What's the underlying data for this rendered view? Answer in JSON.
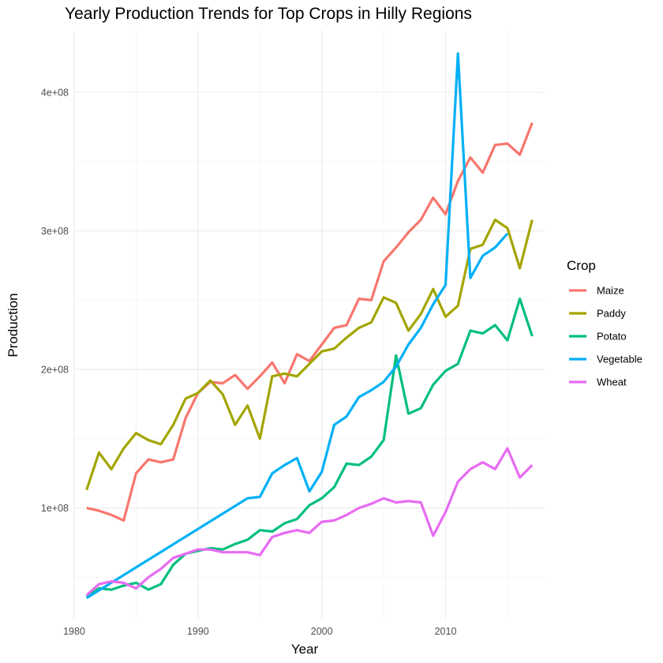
{
  "chart_data": {
    "type": "line",
    "title": "Yearly Production Trends for Top Crops in Hilly Regions",
    "xlabel": "Year",
    "ylabel": "Production",
    "xlim": [
      1980,
      2018
    ],
    "ylim": [
      20000000,
      445000000
    ],
    "x_ticks": [
      1980,
      1990,
      2000,
      2010
    ],
    "x_tick_labels": [
      "1980",
      "1990",
      "2000",
      "2010"
    ],
    "y_ticks": [
      100000000,
      200000000,
      300000000,
      400000000
    ],
    "y_tick_labels": [
      "1e+08",
      "2e+08",
      "3e+08",
      "4e+08"
    ],
    "grid": true,
    "legend": {
      "title": "Crop",
      "position": "right"
    },
    "series": [
      {
        "name": "Maize",
        "color": "#F8766D",
        "x": [
          1981,
          1982,
          1983,
          1984,
          1985,
          1986,
          1987,
          1988,
          1989,
          1990,
          1991,
          1992,
          1993,
          1994,
          1995,
          1996,
          1997,
          1998,
          1999,
          2000,
          2001,
          2002,
          2003,
          2004,
          2005,
          2006,
          2007,
          2008,
          2009,
          2010,
          2011,
          2012,
          2013,
          2014,
          2015,
          2016,
          2017
        ],
        "y": [
          100000000,
          98000000,
          95000000,
          91000000,
          125000000,
          135000000,
          133000000,
          135000000,
          165000000,
          183000000,
          191000000,
          190000000,
          196000000,
          186000000,
          195000000,
          205000000,
          190000000,
          211000000,
          206000000,
          218000000,
          230000000,
          232000000,
          251000000,
          250000000,
          278000000,
          288000000,
          299000000,
          308000000,
          324000000,
          312000000,
          336000000,
          353000000,
          342000000,
          362000000,
          363000000,
          355000000,
          378000000
        ]
      },
      {
        "name": "Paddy",
        "color": "#A3A500",
        "x": [
          1981,
          1982,
          1983,
          1984,
          1985,
          1986,
          1987,
          1988,
          1989,
          1990,
          1991,
          1992,
          1993,
          1994,
          1995,
          1996,
          1997,
          1998,
          1999,
          2000,
          2001,
          2002,
          2003,
          2004,
          2005,
          2006,
          2007,
          2008,
          2009,
          2010,
          2011,
          2012,
          2013,
          2014,
          2015,
          2016,
          2017
        ],
        "y": [
          113000000,
          140000000,
          128000000,
          143000000,
          154000000,
          149000000,
          146000000,
          160000000,
          179000000,
          183000000,
          192000000,
          182000000,
          160000000,
          174000000,
          150000000,
          195000000,
          197000000,
          195000000,
          204000000,
          213000000,
          215000000,
          223000000,
          230000000,
          234000000,
          252000000,
          248000000,
          228000000,
          240000000,
          258000000,
          238000000,
          246000000,
          287000000,
          290000000,
          308000000,
          302000000,
          273000000,
          308000000
        ]
      },
      {
        "name": "Potato",
        "color": "#00BF7D",
        "x": [
          1981,
          1982,
          1983,
          1984,
          1985,
          1986,
          1987,
          1988,
          1989,
          1990,
          1991,
          1992,
          1993,
          1994,
          1995,
          1996,
          1997,
          1998,
          1999,
          2000,
          2001,
          2002,
          2003,
          2004,
          2005,
          2006,
          2007,
          2008,
          2009,
          2010,
          2011,
          2012,
          2013,
          2014,
          2015,
          2016,
          2017
        ],
        "y": [
          36000000,
          42000000,
          41000000,
          44000000,
          46000000,
          41000000,
          45000000,
          59000000,
          67000000,
          69000000,
          71000000,
          70000000,
          74000000,
          77000000,
          84000000,
          83000000,
          89000000,
          92000000,
          102000000,
          107000000,
          115000000,
          132000000,
          131000000,
          137000000,
          149000000,
          210000000,
          168000000,
          172000000,
          189000000,
          199000000,
          204000000,
          228000000,
          226000000,
          232000000,
          221000000,
          251000000,
          224000000
        ]
      },
      {
        "name": "Vegetable",
        "color": "#00B0F6",
        "x": [
          1981,
          1994,
          1995,
          1996,
          1997,
          1998,
          1999,
          2000,
          2001,
          2002,
          2003,
          2004,
          2005,
          2006,
          2007,
          2008,
          2009,
          2010,
          2011,
          2012,
          2013,
          2014,
          2015
        ],
        "y": [
          35000000,
          107000000,
          108000000,
          125000000,
          131000000,
          136000000,
          112000000,
          126000000,
          160000000,
          166000000,
          180000000,
          185000000,
          191000000,
          202000000,
          218000000,
          230000000,
          247000000,
          261000000,
          428000000,
          266000000,
          282000000,
          288000000,
          298000000
        ]
      },
      {
        "name": "Wheat",
        "color": "#E76BF3",
        "x": [
          1981,
          1982,
          1983,
          1984,
          1985,
          1986,
          1987,
          1988,
          1989,
          1990,
          1991,
          1992,
          1993,
          1994,
          1995,
          1996,
          1997,
          1998,
          1999,
          2000,
          2001,
          2002,
          2003,
          2004,
          2005,
          2006,
          2007,
          2008,
          2009,
          2010,
          2011,
          2012,
          2013,
          2014,
          2015,
          2016,
          2017
        ],
        "y": [
          37000000,
          45000000,
          47000000,
          46000000,
          42000000,
          50000000,
          56000000,
          64000000,
          67000000,
          70000000,
          70000000,
          68000000,
          68000000,
          68000000,
          66000000,
          79000000,
          82000000,
          84000000,
          82000000,
          90000000,
          91000000,
          95000000,
          100000000,
          103000000,
          107000000,
          104000000,
          105000000,
          104000000,
          80000000,
          97000000,
          119000000,
          128000000,
          133000000,
          128000000,
          143000000,
          122000000,
          131000000
        ]
      }
    ]
  }
}
